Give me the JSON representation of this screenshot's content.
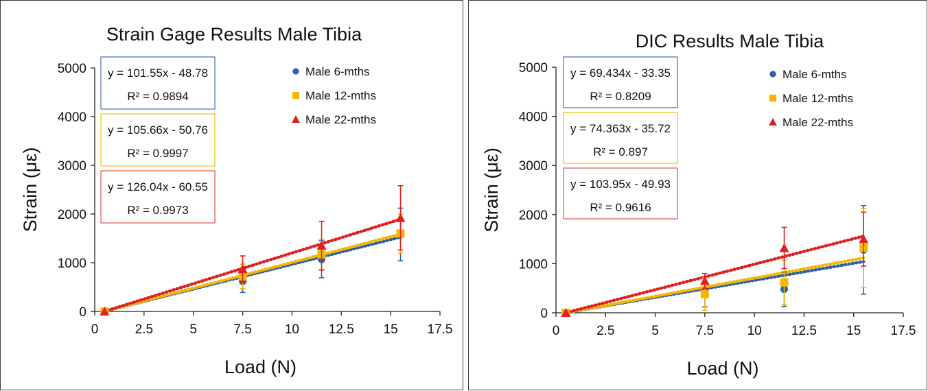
{
  "chart_data": [
    {
      "type": "scatter",
      "title": "Strain Gage Results Male Tibia",
      "xlabel": "Load (N)",
      "ylabel": "Strain (με)",
      "xlim": [
        0,
        17.5
      ],
      "ylim": [
        0,
        5000
      ],
      "xticks": [
        "0",
        "2.5",
        "5",
        "7.5",
        "10",
        "12.5",
        "15",
        "17.5"
      ],
      "yticks": [
        "0",
        "1000",
        "2000",
        "3000",
        "4000",
        "5000"
      ],
      "grid": false,
      "legend_position": "top-right",
      "series": [
        {
          "name": "Male 6-mths",
          "color": "#2e5fa8",
          "marker": "circle",
          "x": [
            0.5,
            7.5,
            11.5,
            15.5
          ],
          "y": [
            0,
            620,
            1070,
            1580
          ],
          "err": [
            0,
            230,
            380,
            540
          ],
          "trend": {
            "slope": 101.55,
            "intercept": -48.78,
            "equation": "y = 101.55x - 48.78",
            "r2": "R² = 0.9894",
            "box_color": "#4a6fb5"
          }
        },
        {
          "name": "Male 12-mths",
          "color": "#f5b800",
          "marker": "square",
          "x": [
            0.5,
            7.5,
            11.5,
            15.5
          ],
          "y": [
            0,
            720,
            1170,
            1600
          ],
          "err": [
            0,
            250,
            310,
            400
          ],
          "trend": {
            "slope": 105.66,
            "intercept": -50.76,
            "equation": "y = 105.66x - 50.76",
            "r2": "R² = 0.9997",
            "box_color": "#f2c200"
          }
        },
        {
          "name": "Male 22-mths",
          "color": "#e02020",
          "marker": "triangle",
          "x": [
            0.5,
            7.5,
            11.5,
            15.5
          ],
          "y": [
            0,
            870,
            1350,
            1920
          ],
          "err": [
            0,
            270,
            500,
            660
          ],
          "trend": {
            "slope": 126.04,
            "intercept": -60.55,
            "equation": "y = 126.04x - 60.55",
            "r2": "R² = 0.9973",
            "box_color": "#e05050"
          }
        }
      ]
    },
    {
      "type": "scatter",
      "title": "DIC Results Male Tibia",
      "xlabel": "Load (N)",
      "ylabel": "Strain (με)",
      "xlim": [
        0,
        17.5
      ],
      "ylim": [
        0,
        5000
      ],
      "xticks": [
        "0",
        "2.5",
        "5",
        "7.5",
        "10",
        "12.5",
        "15",
        "17.5"
      ],
      "yticks": [
        "0",
        "1000",
        "2000",
        "3000",
        "4000",
        "5000"
      ],
      "grid": false,
      "legend_position": "top-right",
      "series": [
        {
          "name": "Male 6-mths",
          "color": "#2e5fa8",
          "marker": "circle",
          "x": [
            0.5,
            7.5,
            11.5,
            15.5
          ],
          "y": [
            0,
            420,
            480,
            1280
          ],
          "err": [
            0,
            300,
            350,
            900
          ],
          "trend": {
            "slope": 69.434,
            "intercept": -33.35,
            "equation": "y = 69.434x - 33.35",
            "r2": "R² = 0.8209",
            "box_color": "#4a6fb5"
          }
        },
        {
          "name": "Male 12-mths",
          "color": "#f5b800",
          "marker": "square",
          "x": [
            0.5,
            7.5,
            11.5,
            15.5
          ],
          "y": [
            0,
            380,
            620,
            1320
          ],
          "err": [
            0,
            330,
            450,
            800
          ],
          "trend": {
            "slope": 74.363,
            "intercept": -35.72,
            "equation": "y = 74.363x - 35.72",
            "r2": "R² = 0.897",
            "box_color": "#f2c200"
          }
        },
        {
          "name": "Male 22-mths",
          "color": "#e02020",
          "marker": "triangle",
          "x": [
            0.5,
            7.5,
            11.5,
            15.5
          ],
          "y": [
            0,
            650,
            1320,
            1500
          ],
          "err": [
            0,
            150,
            420,
            550
          ],
          "trend": {
            "slope": 103.95,
            "intercept": -49.93,
            "equation": "y = 103.95x - 49.93",
            "r2": "R² = 0.9616",
            "box_color": "#e05050"
          }
        }
      ]
    }
  ]
}
